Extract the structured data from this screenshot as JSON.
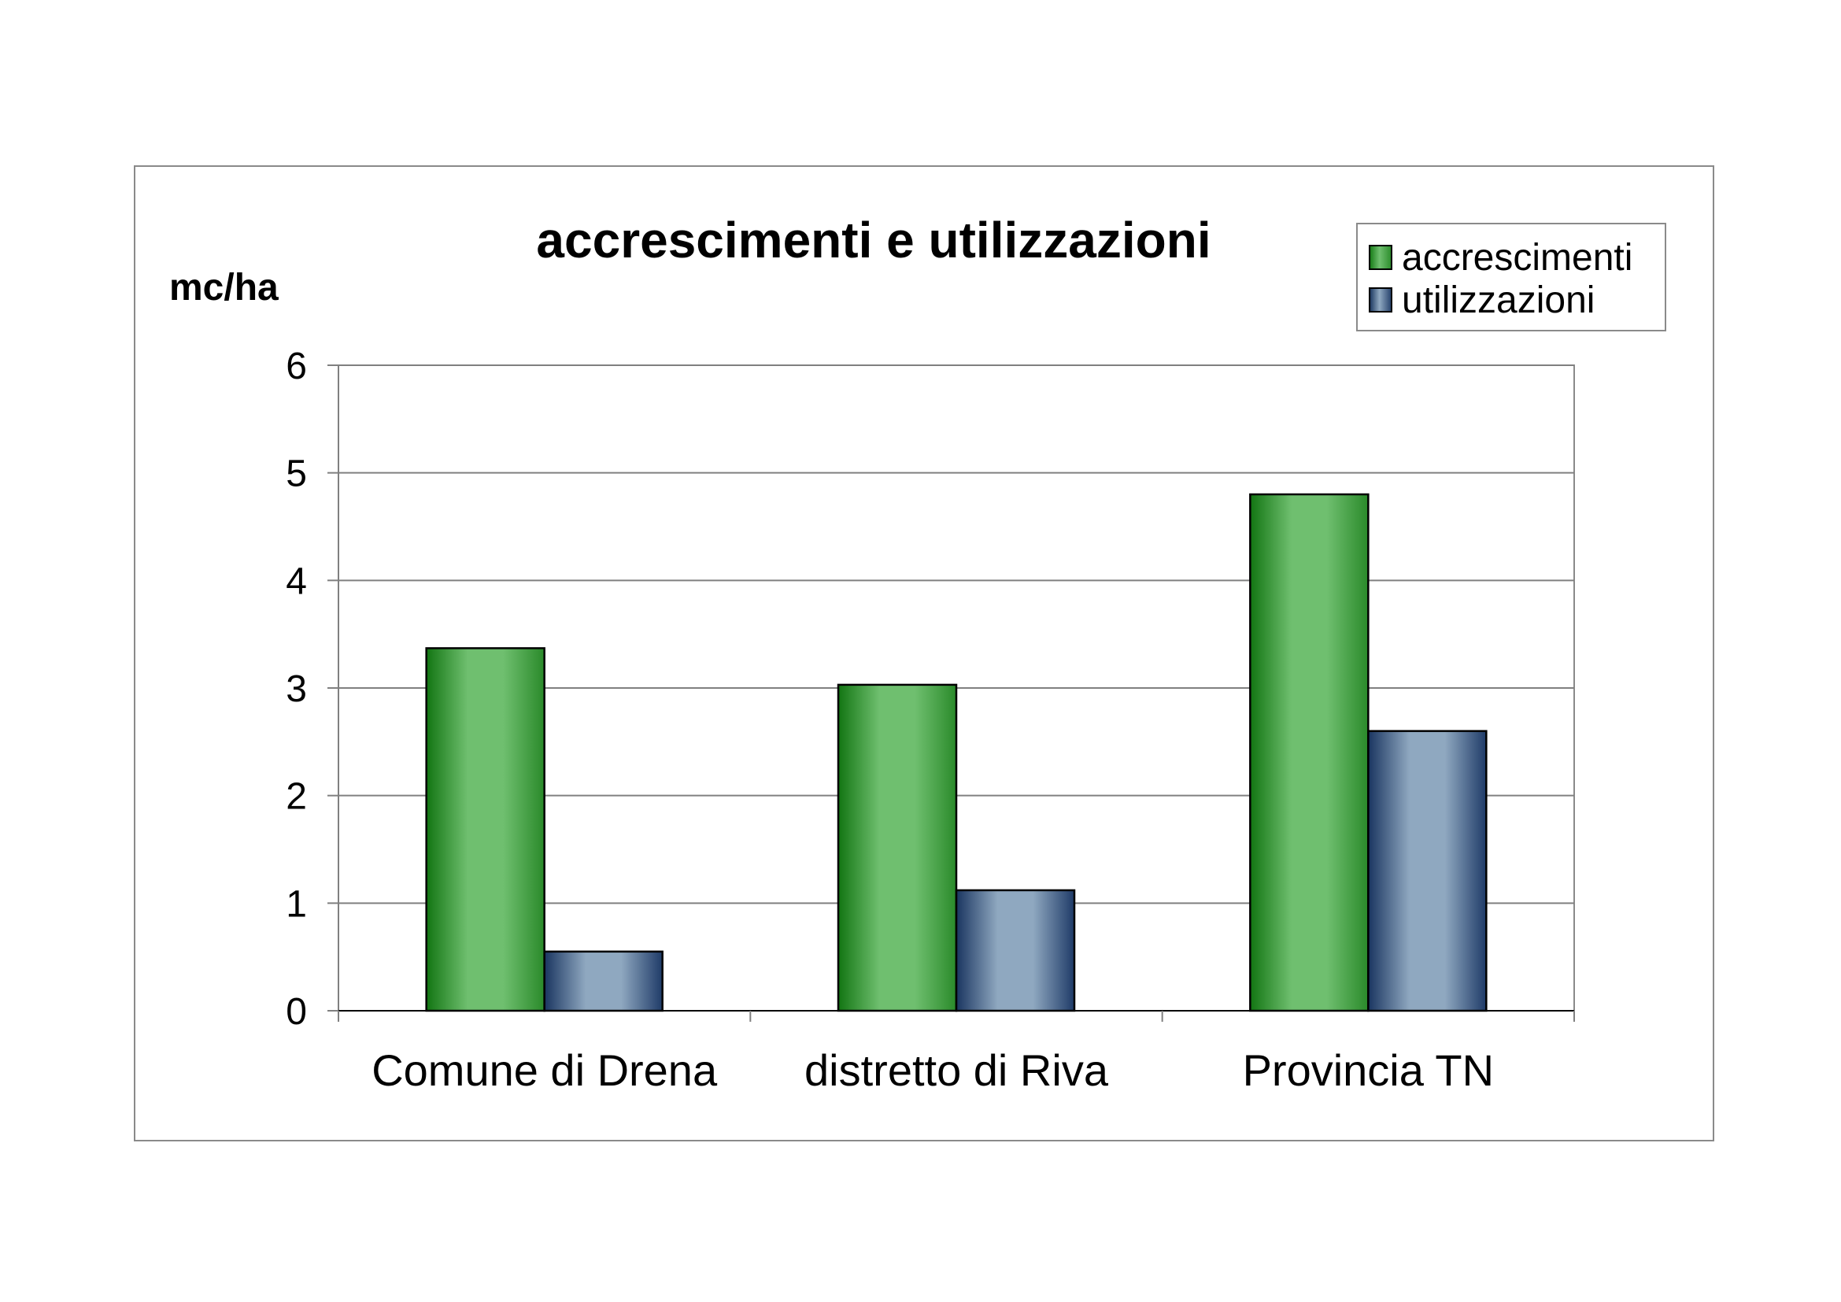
{
  "chart_data": {
    "type": "bar",
    "title": "accrescimenti e utilizzazioni",
    "ylabel": "mc/ha",
    "xlabel": "",
    "categories": [
      "Comune di Drena",
      "distretto di Riva",
      "Provincia TN"
    ],
    "series": [
      {
        "name": "accrescimenti",
        "values": [
          3.37,
          3.03,
          4.8
        ],
        "color": "#5cb85c"
      },
      {
        "name": "utilizzazioni",
        "values": [
          0.55,
          1.12,
          2.6
        ],
        "color": "#8fa8c0"
      }
    ],
    "ylim": [
      0,
      6
    ],
    "yticks": [
      "0",
      "1",
      "2",
      "3",
      "4",
      "5",
      "6"
    ],
    "grid": true,
    "legend_position": "top-right"
  }
}
